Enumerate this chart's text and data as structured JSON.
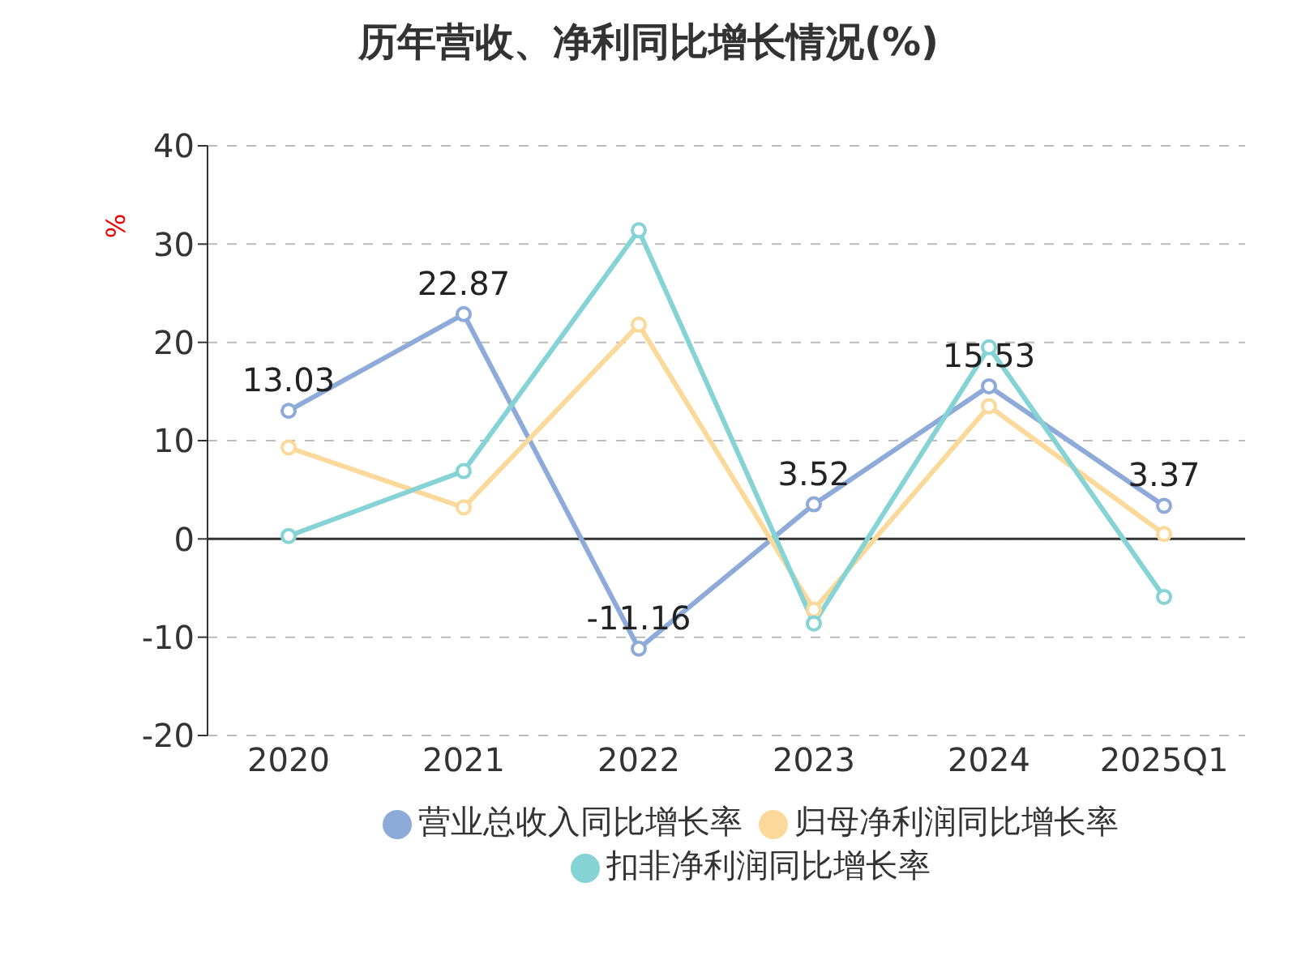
{
  "chart_data": {
    "type": "line",
    "title": "历年营收、净利同比增长情况(%)",
    "ylabel": "%",
    "categories": [
      "2020",
      "2021",
      "2022",
      "2023",
      "2024",
      "2025Q1"
    ],
    "series": [
      {
        "name": "营业总收入同比增长率",
        "color": "#8eaad9",
        "values": [
          13.03,
          22.87,
          -11.16,
          3.52,
          15.53,
          3.37
        ],
        "value_labels": [
          "13.03",
          "22.87",
          "-11.16",
          "3.52",
          "15.53",
          "3.37"
        ]
      },
      {
        "name": "归母净利润同比增长率",
        "color": "#fbd99a",
        "values": [
          9.3,
          3.2,
          21.8,
          -7.2,
          13.5,
          0.5
        ]
      },
      {
        "name": "扣非净利润同比增长率",
        "color": "#86d3d6",
        "values": [
          0.3,
          6.9,
          31.4,
          -8.6,
          19.5,
          -5.9
        ]
      }
    ],
    "ylim": [
      -20,
      40
    ],
    "yticks": [
      -20,
      -10,
      0,
      10,
      20,
      30,
      40
    ],
    "grid": "y",
    "legend": "bottom",
    "marker": "circle",
    "line_style": "solid",
    "ref_lines": [
      {
        "axis": "y",
        "value": 0,
        "color": "#333333"
      }
    ]
  }
}
